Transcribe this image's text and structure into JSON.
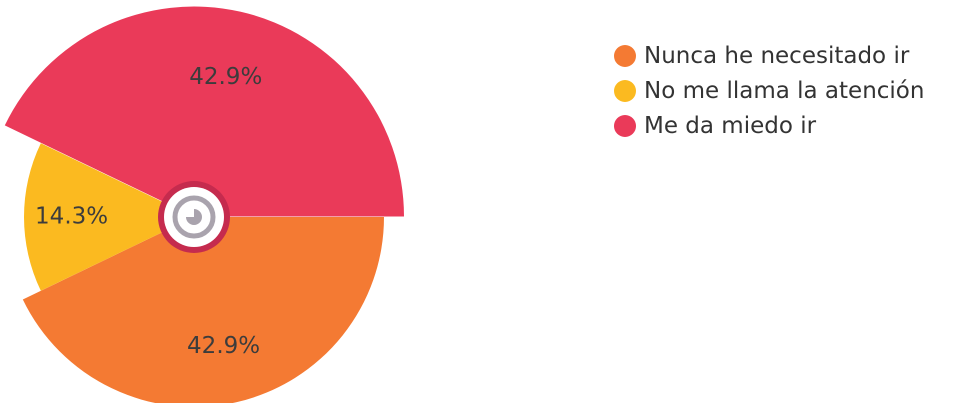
{
  "chart_data": {
    "type": "pie",
    "categories": [
      "Nunca he necesitado ir",
      "No me llama la atención",
      "Me da miedo ir"
    ],
    "values": [
      42.9,
      14.3,
      42.9
    ],
    "labels": [
      "42.9%",
      "14.3%",
      "42.9%"
    ],
    "colors": [
      "#f47a33",
      "#fbba20",
      "#ea3a59"
    ],
    "title": "",
    "legend_position": "top-right"
  },
  "legend": {
    "items": [
      {
        "label": "Nunca he necesitado ir",
        "color": "#f47a33"
      },
      {
        "label": "No me llama la atención",
        "color": "#fbba20"
      },
      {
        "label": "Me da miedo ir",
        "color": "#ea3a59"
      }
    ]
  },
  "center_icon": "pie-chart-icon"
}
